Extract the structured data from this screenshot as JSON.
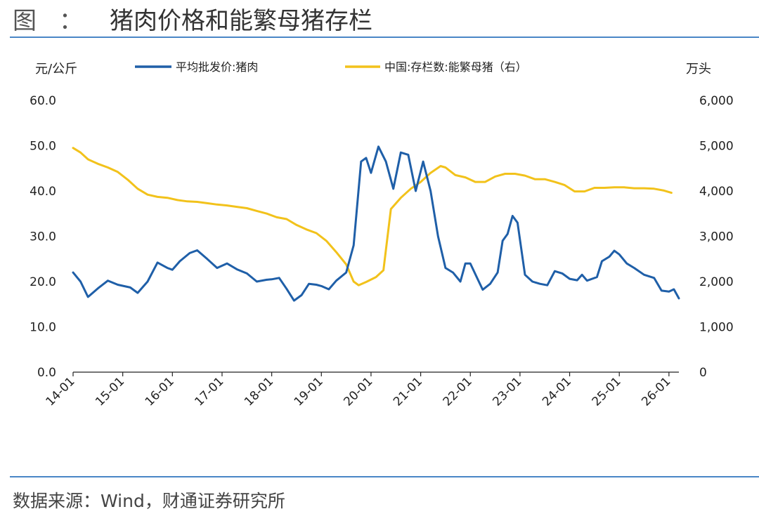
{
  "header": {
    "fig_label": "图",
    "colon": "：",
    "title": "猪肉价格和能繁母猪存栏"
  },
  "footer": {
    "source": "数据来源：Wind，财通证券研究所"
  },
  "chart_data": {
    "type": "line",
    "title": "猪肉价格和能繁母猪存栏",
    "left_axis_unit": "元/公斤",
    "right_axis_unit": "万头",
    "ylim_left": [
      0,
      60
    ],
    "ylim_right": [
      0,
      6000
    ],
    "left_ticks": [
      "0.0",
      "10.0",
      "20.0",
      "30.0",
      "40.0",
      "50.0",
      "60.0"
    ],
    "right_ticks": [
      "0",
      "1,000",
      "2,000",
      "3,000",
      "4,000",
      "5,000",
      "6,000"
    ],
    "x_tick_labels": [
      "14-01",
      "15-01",
      "16-01",
      "17-01",
      "18-01",
      "19-01",
      "20-01",
      "21-01",
      "22-01",
      "23-01",
      "24-01",
      "25-01",
      "26-01"
    ],
    "x_range": [
      2014.0,
      2026.2
    ],
    "grid": false,
    "legend_position": "top",
    "colors": {
      "price": "#1f5fa8",
      "inventory": "#f2c21b"
    },
    "series": [
      {
        "name": "平均批发价:猪肉",
        "axis": "left",
        "points": [
          [
            2014.0,
            22.0
          ],
          [
            2014.15,
            20.0
          ],
          [
            2014.3,
            16.6
          ],
          [
            2014.5,
            18.5
          ],
          [
            2014.7,
            20.2
          ],
          [
            2014.9,
            19.3
          ],
          [
            2015.15,
            18.7
          ],
          [
            2015.3,
            17.5
          ],
          [
            2015.5,
            20.0
          ],
          [
            2015.7,
            24.2
          ],
          [
            2015.9,
            23.0
          ],
          [
            2016.0,
            22.6
          ],
          [
            2016.15,
            24.5
          ],
          [
            2016.35,
            26.3
          ],
          [
            2016.5,
            26.9
          ],
          [
            2016.7,
            25.0
          ],
          [
            2016.9,
            23.0
          ],
          [
            2017.1,
            24.0
          ],
          [
            2017.3,
            22.7
          ],
          [
            2017.5,
            21.8
          ],
          [
            2017.7,
            20.0
          ],
          [
            2017.9,
            20.4
          ],
          [
            2018.0,
            20.5
          ],
          [
            2018.15,
            20.8
          ],
          [
            2018.3,
            18.4
          ],
          [
            2018.45,
            15.8
          ],
          [
            2018.6,
            17.0
          ],
          [
            2018.75,
            19.5
          ],
          [
            2018.9,
            19.3
          ],
          [
            2019.0,
            19.0
          ],
          [
            2019.15,
            18.3
          ],
          [
            2019.3,
            20.2
          ],
          [
            2019.5,
            22.0
          ],
          [
            2019.65,
            28.0
          ],
          [
            2019.8,
            46.5
          ],
          [
            2019.9,
            47.3
          ],
          [
            2020.0,
            44.0
          ],
          [
            2020.15,
            49.8
          ],
          [
            2020.3,
            46.5
          ],
          [
            2020.45,
            40.5
          ],
          [
            2020.6,
            48.5
          ],
          [
            2020.75,
            48.0
          ],
          [
            2020.9,
            40.0
          ],
          [
            2021.05,
            46.5
          ],
          [
            2021.2,
            40.0
          ],
          [
            2021.35,
            30.0
          ],
          [
            2021.5,
            23.0
          ],
          [
            2021.65,
            22.0
          ],
          [
            2021.8,
            20.0
          ],
          [
            2021.9,
            24.0
          ],
          [
            2022.0,
            24.0
          ],
          [
            2022.15,
            20.5
          ],
          [
            2022.25,
            18.2
          ],
          [
            2022.4,
            19.5
          ],
          [
            2022.55,
            22.0
          ],
          [
            2022.65,
            29.0
          ],
          [
            2022.75,
            30.5
          ],
          [
            2022.85,
            34.5
          ],
          [
            2022.95,
            33.0
          ],
          [
            2023.1,
            21.5
          ],
          [
            2023.25,
            20.0
          ],
          [
            2023.4,
            19.5
          ],
          [
            2023.55,
            19.2
          ],
          [
            2023.7,
            22.3
          ],
          [
            2023.85,
            21.8
          ],
          [
            2024.0,
            20.6
          ],
          [
            2024.15,
            20.3
          ],
          [
            2024.25,
            21.5
          ],
          [
            2024.35,
            20.2
          ],
          [
            2024.55,
            21.0
          ],
          [
            2024.65,
            24.5
          ],
          [
            2024.8,
            25.5
          ],
          [
            2024.9,
            26.8
          ],
          [
            2025.0,
            26.0
          ],
          [
            2025.15,
            24.0
          ],
          [
            2025.3,
            23.0
          ],
          [
            2025.5,
            21.5
          ],
          [
            2025.7,
            20.8
          ],
          [
            2025.85,
            18.0
          ],
          [
            2026.0,
            17.8
          ],
          [
            2026.1,
            18.3
          ],
          [
            2026.2,
            16.3
          ]
        ]
      },
      {
        "name": "中国:存栏数:能繁母猪（右）",
        "axis": "right",
        "points": [
          [
            2014.0,
            4950
          ],
          [
            2014.15,
            4850
          ],
          [
            2014.3,
            4700
          ],
          [
            2014.5,
            4600
          ],
          [
            2014.7,
            4520
          ],
          [
            2014.9,
            4420
          ],
          [
            2015.1,
            4250
          ],
          [
            2015.3,
            4050
          ],
          [
            2015.5,
            3920
          ],
          [
            2015.7,
            3870
          ],
          [
            2015.9,
            3850
          ],
          [
            2016.1,
            3800
          ],
          [
            2016.3,
            3770
          ],
          [
            2016.5,
            3760
          ],
          [
            2016.7,
            3730
          ],
          [
            2016.9,
            3700
          ],
          [
            2017.1,
            3680
          ],
          [
            2017.3,
            3650
          ],
          [
            2017.5,
            3620
          ],
          [
            2017.7,
            3560
          ],
          [
            2017.9,
            3500
          ],
          [
            2018.1,
            3420
          ],
          [
            2018.3,
            3380
          ],
          [
            2018.5,
            3250
          ],
          [
            2018.7,
            3150
          ],
          [
            2018.9,
            3070
          ],
          [
            2019.1,
            2900
          ],
          [
            2019.3,
            2650
          ],
          [
            2019.5,
            2380
          ],
          [
            2019.65,
            2000
          ],
          [
            2019.75,
            1920
          ],
          [
            2019.9,
            1990
          ],
          [
            2020.1,
            2100
          ],
          [
            2020.25,
            2250
          ],
          [
            2020.4,
            3600
          ],
          [
            2020.6,
            3850
          ],
          [
            2020.8,
            4050
          ],
          [
            2021.0,
            4200
          ],
          [
            2021.2,
            4400
          ],
          [
            2021.4,
            4550
          ],
          [
            2021.5,
            4520
          ],
          [
            2021.7,
            4350
          ],
          [
            2021.9,
            4300
          ],
          [
            2022.1,
            4200
          ],
          [
            2022.3,
            4200
          ],
          [
            2022.5,
            4320
          ],
          [
            2022.7,
            4380
          ],
          [
            2022.9,
            4380
          ],
          [
            2023.1,
            4340
          ],
          [
            2023.3,
            4260
          ],
          [
            2023.5,
            4260
          ],
          [
            2023.7,
            4200
          ],
          [
            2023.9,
            4130
          ],
          [
            2024.1,
            3990
          ],
          [
            2024.3,
            3990
          ],
          [
            2024.5,
            4070
          ],
          [
            2024.7,
            4070
          ],
          [
            2024.9,
            4080
          ],
          [
            2025.1,
            4080
          ],
          [
            2025.3,
            4060
          ],
          [
            2025.5,
            4060
          ],
          [
            2025.7,
            4050
          ],
          [
            2025.9,
            4010
          ],
          [
            2026.05,
            3960
          ]
        ]
      }
    ]
  }
}
